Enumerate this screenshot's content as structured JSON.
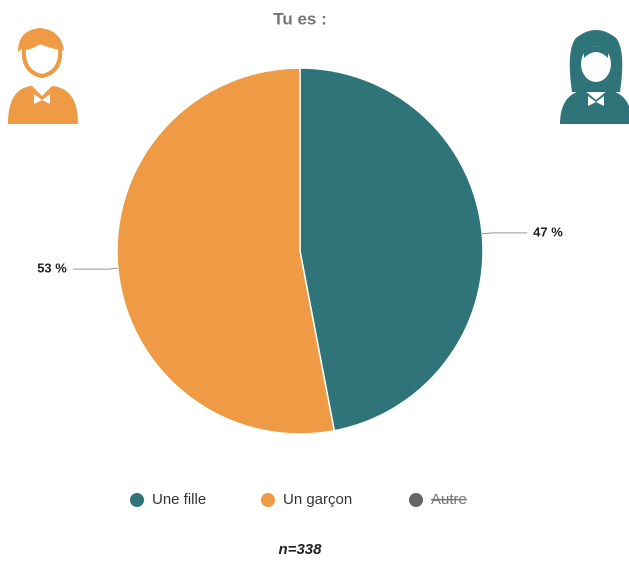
{
  "chart_data": {
    "type": "pie",
    "title": "Tu es :",
    "categories": [
      "Une fille",
      "Un garçon",
      "Autre"
    ],
    "values": [
      47,
      53,
      null
    ],
    "value_labels": [
      "47 %",
      "53 %",
      null
    ],
    "colors": [
      "#2e7479",
      "#ef9b45",
      "#666666"
    ],
    "hidden": [
      false,
      false,
      true
    ],
    "legend": "bottom",
    "annotation": "n=338"
  }
}
